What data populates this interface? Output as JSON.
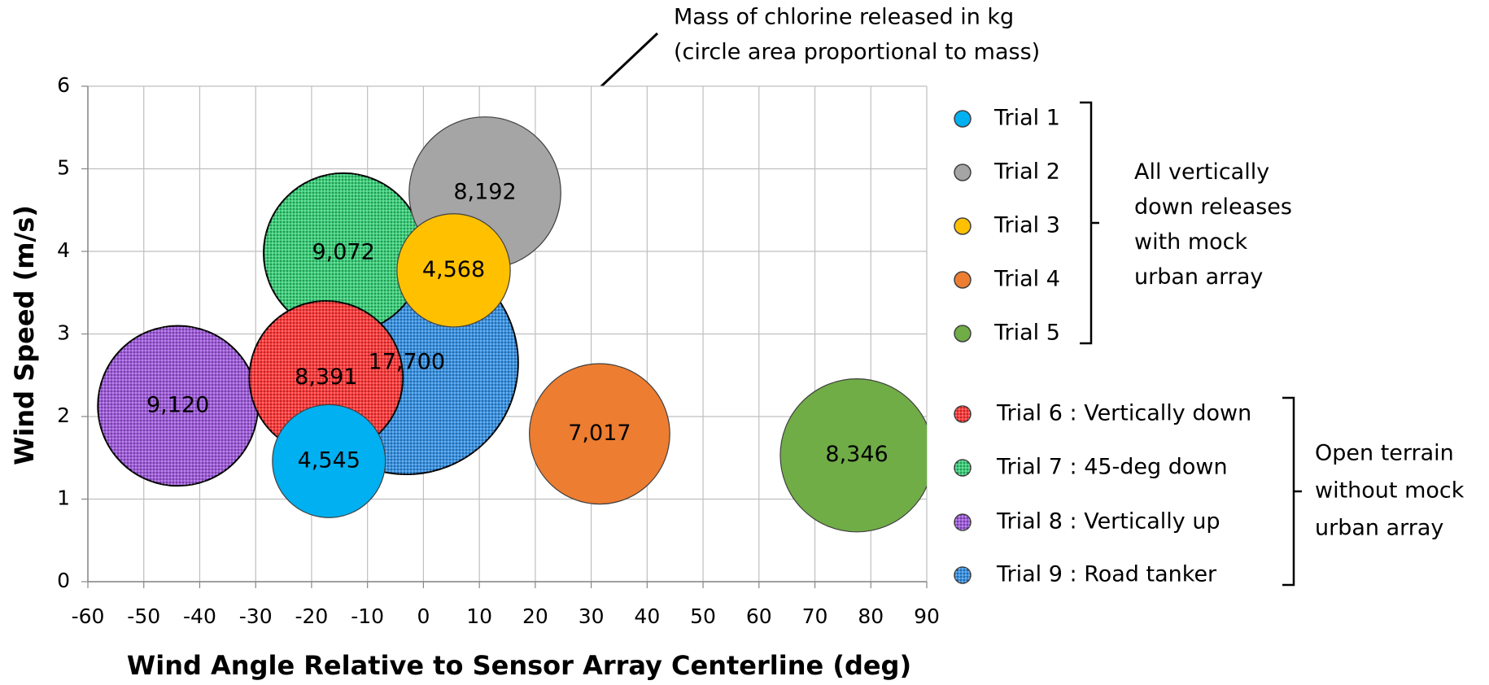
{
  "chart_data": {
    "type": "bubble",
    "x_label": "Wind Angle Relative to Sensor Array Centerline (deg)",
    "y_label": "Wind Speed (m/s)",
    "xlim": [
      -60,
      90
    ],
    "xticks": [
      -60,
      -50,
      -40,
      -30,
      -20,
      -10,
      0,
      10,
      20,
      30,
      40,
      50,
      60,
      70,
      80,
      90
    ],
    "ylim": [
      0,
      6
    ],
    "yticks": [
      0,
      1,
      2,
      3,
      4,
      5,
      6
    ],
    "grid": true,
    "annotation": [
      "Mass of chlorine released in kg",
      "(circle area proportional to mass)"
    ],
    "groups": [
      {
        "lines": [
          "All vertically",
          "down releases",
          "with mock",
          "urban array"
        ],
        "series": [
          {
            "name": "Trial 1",
            "color": "#00b0f0",
            "hatched": false,
            "x": [
              -16.9
            ],
            "values": [
              1.46
            ],
            "sizes": [
              4545
            ],
            "value_labels": [
              "4,545"
            ]
          },
          {
            "name": "Trial 2",
            "color": "#a5a5a5",
            "hatched": false,
            "x": [
              11
            ],
            "values": [
              4.71
            ],
            "sizes": [
              8192
            ],
            "value_labels": [
              "8,192"
            ]
          },
          {
            "name": "Trial 3",
            "color": "#ffc000",
            "hatched": false,
            "x": [
              5.4
            ],
            "values": [
              3.77
            ],
            "sizes": [
              4568
            ],
            "value_labels": [
              "4,568"
            ]
          },
          {
            "name": "Trial 4",
            "color": "#ed7d31",
            "hatched": false,
            "x": [
              31.5
            ],
            "values": [
              1.79
            ],
            "sizes": [
              7017
            ],
            "value_labels": [
              "7,017"
            ]
          },
          {
            "name": "Trial 5",
            "color": "#70ad47",
            "hatched": false,
            "x": [
              77.5
            ],
            "values": [
              1.53
            ],
            "sizes": [
              8346
            ],
            "value_labels": [
              "8,346"
            ]
          }
        ]
      },
      {
        "lines": [
          "Open terrain",
          "without mock",
          "urban array"
        ],
        "series": [
          {
            "name": "Trial 6 : Vertically down",
            "color": "#ff3b3b",
            "hatched": true,
            "x": [
              -17.4
            ],
            "values": [
              2.47
            ],
            "sizes": [
              8391
            ],
            "value_labels": [
              "8,391"
            ]
          },
          {
            "name": "Trial 7 : 45-deg down",
            "color": "#3ccf7a",
            "hatched": true,
            "x": [
              -14.3
            ],
            "values": [
              3.98
            ],
            "sizes": [
              9072
            ],
            "value_labels": [
              "9,072"
            ]
          },
          {
            "name": "Trial 8 : Vertically up",
            "color": "#a05ddb",
            "hatched": true,
            "x": [
              -43.9
            ],
            "values": [
              2.13
            ],
            "sizes": [
              9120
            ],
            "value_labels": [
              "9,120"
            ]
          },
          {
            "name": "Trial 9 : Road tanker",
            "color": "#3a93e3",
            "hatched": true,
            "x": [
              -3
            ],
            "values": [
              2.65
            ],
            "sizes": [
              17700
            ],
            "value_labels": [
              "17,700"
            ]
          }
        ]
      }
    ]
  }
}
